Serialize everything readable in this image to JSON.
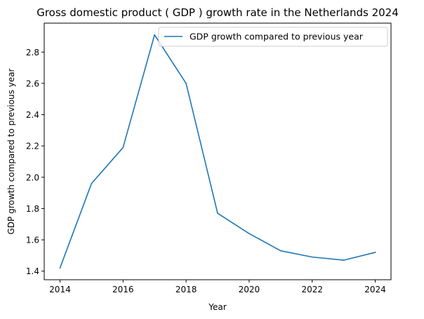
{
  "chart_data": {
    "type": "line",
    "title": "Gross domestic product ( GDP ) growth rate in the Netherlands 2024",
    "xlabel": "Year",
    "ylabel": "GDP growth compared to previous year",
    "x": [
      2014,
      2015,
      2016,
      2017,
      2018,
      2019,
      2020,
      2021,
      2022,
      2023,
      2024
    ],
    "series": [
      {
        "name": "GDP growth compared to previous year",
        "color": "#1f77b4",
        "values": [
          1.42,
          1.96,
          2.19,
          2.91,
          2.6,
          1.77,
          1.64,
          1.53,
          1.49,
          1.47,
          1.52
        ]
      }
    ],
    "xlim": [
      2013.5,
      2024.5
    ],
    "ylim": [
      1.345,
      2.985
    ],
    "xticks": [
      "2014",
      "2016",
      "2018",
      "2020",
      "2022",
      "2024"
    ],
    "yticks": [
      "1.4",
      "1.6",
      "1.8",
      "2.0",
      "2.2",
      "2.4",
      "2.6",
      "2.8"
    ],
    "grid": false,
    "legend_position": "top-right"
  }
}
